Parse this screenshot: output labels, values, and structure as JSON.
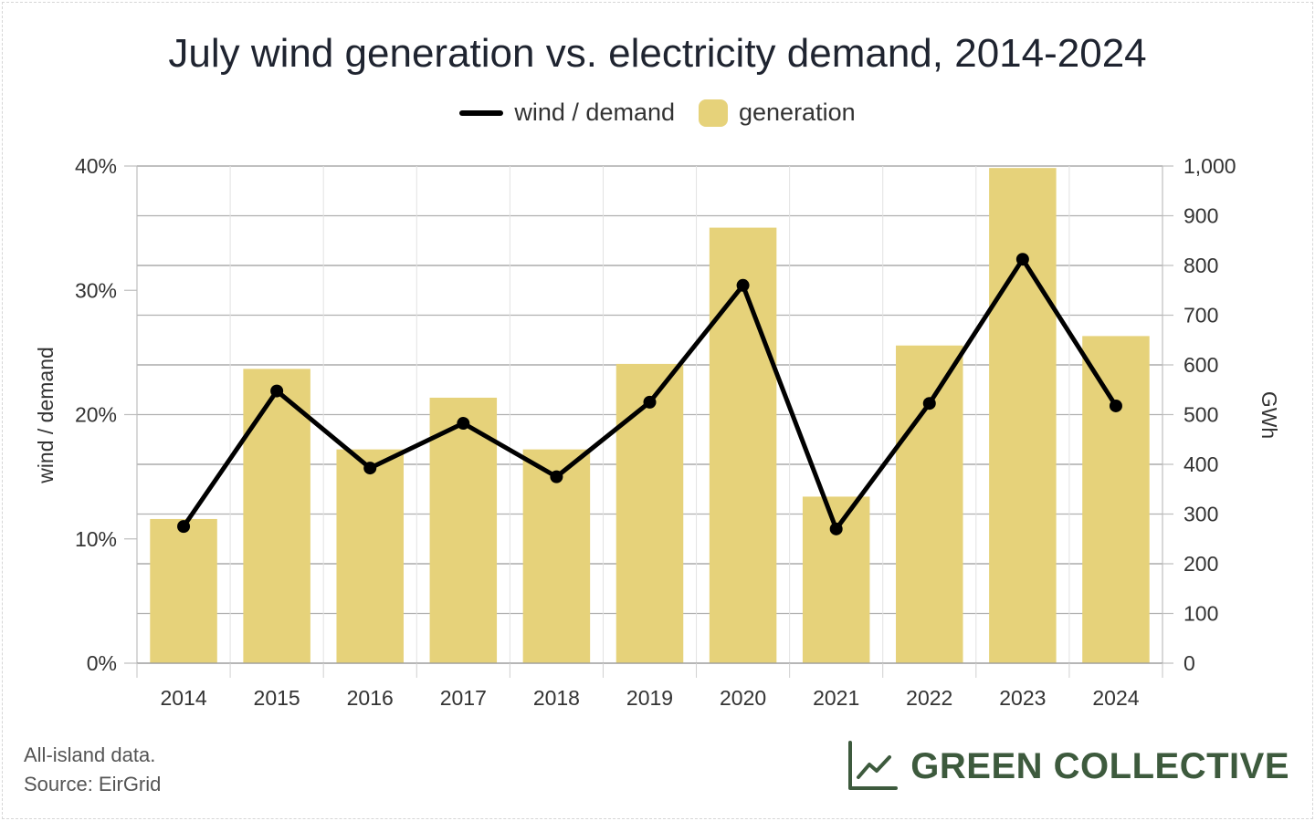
{
  "chart_data": {
    "type": "bar",
    "title": "July wind generation vs. electricity demand, 2014-2024",
    "categories": [
      "2014",
      "2015",
      "2016",
      "2017",
      "2018",
      "2019",
      "2020",
      "2021",
      "2022",
      "2023",
      "2024"
    ],
    "series": [
      {
        "name": "generation",
        "type": "bar",
        "axis": "right",
        "color": "#e6d27a",
        "values": [
          290,
          592,
          430,
          534,
          430,
          602,
          876,
          335,
          639,
          996,
          658
        ]
      },
      {
        "name": "wind / demand",
        "type": "line",
        "axis": "left",
        "color": "#000000",
        "values": [
          11.0,
          21.9,
          15.7,
          19.3,
          15.0,
          21.0,
          30.4,
          10.8,
          20.9,
          32.5,
          20.7
        ]
      }
    ],
    "ylabel_left": "wind / demand",
    "ylabel_right": "GWh",
    "ylim_left": [
      0,
      40
    ],
    "ylim_right": [
      0,
      1000
    ],
    "left_ticks": [
      "0%",
      "10%",
      "20%",
      "30%",
      "40%"
    ],
    "right_ticks": [
      "0",
      "100",
      "200",
      "300",
      "400",
      "500",
      "600",
      "700",
      "800",
      "900",
      "1,000"
    ],
    "legend_position": "top-center",
    "grid": true
  },
  "footnote": {
    "line1": "All-island data.",
    "line2": "Source: EirGrid"
  },
  "brand": {
    "name": "GREEN COLLECTIVE",
    "icon": "line-chart-icon",
    "color": "#3d5a3d"
  }
}
